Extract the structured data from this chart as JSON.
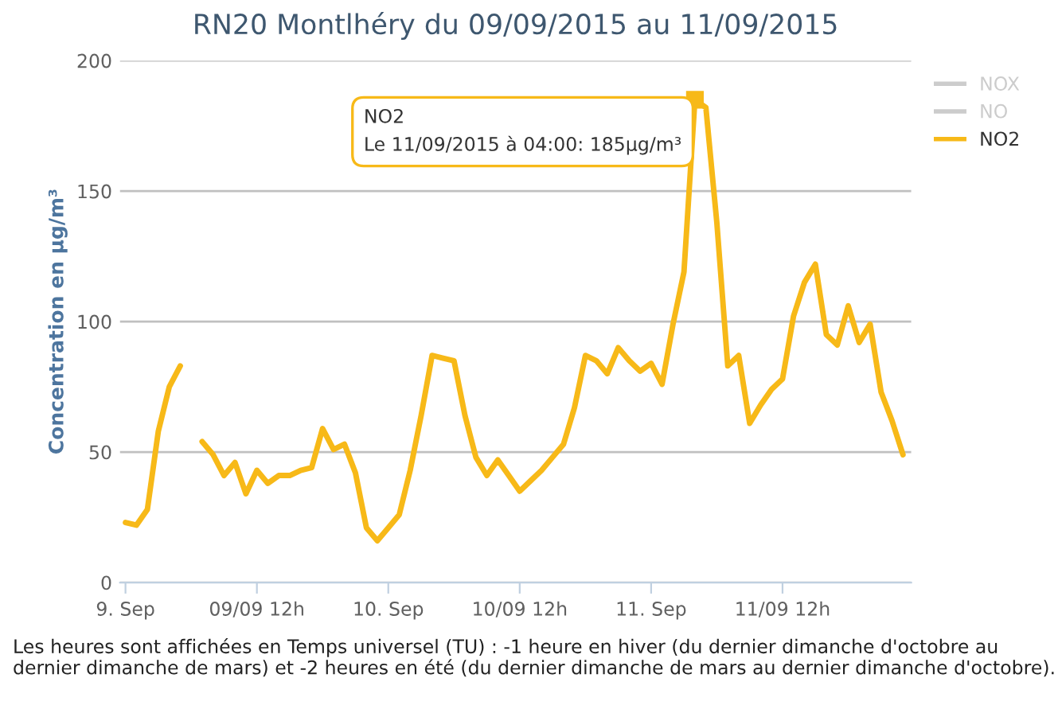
{
  "chart_data": {
    "type": "line",
    "title": "RN20 Montlhéry du 09/09/2015 au 11/09/2015",
    "ylabel": "Concentration en µg/m³",
    "x": [
      "2015-09-09T00:00",
      "2015-09-09T01:00",
      "2015-09-09T02:00",
      "2015-09-09T03:00",
      "2015-09-09T04:00",
      "2015-09-09T05:00",
      "2015-09-09T06:00",
      "2015-09-09T07:00",
      "2015-09-09T08:00",
      "2015-09-09T09:00",
      "2015-09-09T10:00",
      "2015-09-09T11:00",
      "2015-09-09T12:00",
      "2015-09-09T13:00",
      "2015-09-09T14:00",
      "2015-09-09T15:00",
      "2015-09-09T16:00",
      "2015-09-09T17:00",
      "2015-09-09T18:00",
      "2015-09-09T19:00",
      "2015-09-09T20:00",
      "2015-09-09T21:00",
      "2015-09-09T22:00",
      "2015-09-09T23:00",
      "2015-09-10T00:00",
      "2015-09-10T01:00",
      "2015-09-10T02:00",
      "2015-09-10T03:00",
      "2015-09-10T04:00",
      "2015-09-10T05:00",
      "2015-09-10T06:00",
      "2015-09-10T07:00",
      "2015-09-10T08:00",
      "2015-09-10T09:00",
      "2015-09-10T10:00",
      "2015-09-10T11:00",
      "2015-09-10T12:00",
      "2015-09-10T13:00",
      "2015-09-10T14:00",
      "2015-09-10T15:00",
      "2015-09-10T16:00",
      "2015-09-10T17:00",
      "2015-09-10T18:00",
      "2015-09-10T19:00",
      "2015-09-10T20:00",
      "2015-09-10T21:00",
      "2015-09-10T22:00",
      "2015-09-10T23:00",
      "2015-09-11T00:00",
      "2015-09-11T01:00",
      "2015-09-11T02:00",
      "2015-09-11T03:00",
      "2015-09-11T04:00",
      "2015-09-11T05:00",
      "2015-09-11T06:00",
      "2015-09-11T07:00",
      "2015-09-11T08:00",
      "2015-09-11T09:00",
      "2015-09-11T10:00",
      "2015-09-11T11:00",
      "2015-09-11T12:00",
      "2015-09-11T13:00",
      "2015-09-11T14:00",
      "2015-09-11T15:00",
      "2015-09-11T16:00",
      "2015-09-11T17:00",
      "2015-09-11T18:00",
      "2015-09-11T19:00",
      "2015-09-11T20:00",
      "2015-09-11T21:00",
      "2015-09-11T22:00",
      "2015-09-11T23:00"
    ],
    "series": [
      {
        "name": "NOX",
        "color": "#cccccc",
        "values": [
          null,
          null,
          null,
          null,
          null,
          null,
          null,
          null,
          null,
          null,
          null,
          null,
          null,
          null,
          null,
          null,
          null,
          null,
          null,
          null,
          null,
          null,
          null,
          null,
          null,
          null,
          null,
          null,
          null,
          null,
          null,
          null,
          null,
          null,
          null,
          null,
          null,
          null,
          null,
          null,
          null,
          null,
          null,
          null,
          null,
          null,
          null,
          null,
          null,
          null,
          null,
          null,
          null,
          null,
          null,
          null,
          null,
          null,
          null,
          null,
          null,
          null,
          null,
          null,
          null,
          null,
          null,
          null,
          null,
          null,
          null,
          null
        ]
      },
      {
        "name": "NO",
        "color": "#cccccc",
        "values": [
          null,
          null,
          null,
          null,
          null,
          null,
          null,
          null,
          null,
          null,
          null,
          null,
          null,
          null,
          null,
          null,
          null,
          null,
          null,
          null,
          null,
          null,
          null,
          null,
          null,
          null,
          null,
          null,
          null,
          null,
          null,
          null,
          null,
          null,
          null,
          null,
          null,
          null,
          null,
          null,
          null,
          null,
          null,
          null,
          null,
          null,
          null,
          null,
          null,
          null,
          null,
          null,
          null,
          null,
          null,
          null,
          null,
          null,
          null,
          null,
          null,
          null,
          null,
          null,
          null,
          null,
          null,
          null,
          null,
          null,
          null,
          null
        ]
      },
      {
        "name": "NO2",
        "color": "#f7b918",
        "values": [
          23,
          22,
          28,
          58,
          75,
          83,
          null,
          54,
          49,
          41,
          46,
          34,
          43,
          38,
          41,
          41,
          43,
          44,
          59,
          51,
          53,
          42,
          21,
          16,
          21,
          26,
          43,
          64,
          87,
          86,
          85,
          64,
          48,
          41,
          47,
          41,
          35,
          39,
          43,
          48,
          53,
          67,
          87,
          85,
          80,
          90,
          85,
          81,
          84,
          76,
          99,
          119,
          185,
          182,
          138,
          83,
          87,
          61,
          68,
          74,
          78,
          102,
          115,
          122,
          95,
          91,
          106,
          92,
          99,
          73,
          62,
          49
        ]
      }
    ],
    "xlim": [
      "2015-09-08T23:30",
      "2015-09-11T23:45"
    ],
    "xticks": [
      {
        "value": "2015-09-09T00:00",
        "label": "9. Sep"
      },
      {
        "value": "2015-09-09T12:00",
        "label": "09/09 12h"
      },
      {
        "value": "2015-09-10T00:00",
        "label": "10. Sep"
      },
      {
        "value": "2015-09-10T12:00",
        "label": "10/09 12h"
      },
      {
        "value": "2015-09-11T00:00",
        "label": "11. Sep"
      },
      {
        "value": "2015-09-11T12:00",
        "label": "11/09 12h"
      }
    ],
    "ylim": [
      0,
      200
    ],
    "yticks": [
      0,
      50,
      100,
      150,
      200
    ],
    "grid": "y",
    "legend": "right",
    "marker": "none",
    "line_style": "solid",
    "annotations": [
      {
        "text": "NO2\nLe 11/09/2015 à 04:00: 185µg/m³",
        "x": "2015-09-11T04:00",
        "y": 185
      },
      "Les heures sont affichées en Temps universel (TU) : -1 heure en hiver (du dernier dimanche d'octobre au dernier dimanche de mars) et -2 heures en été (du dernier dimanche de mars au dernier dimanche d'octobre)."
    ]
  }
}
